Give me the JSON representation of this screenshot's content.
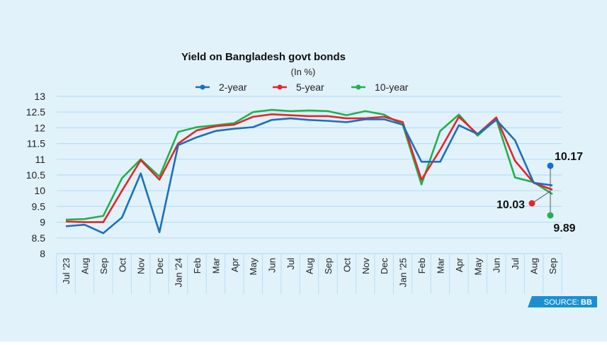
{
  "chart_data": {
    "type": "line",
    "title": "Yield on Bangladesh govt bonds",
    "subtitle": "(In %)",
    "xlabel": "",
    "ylabel": "",
    "ylim": [
      8,
      13
    ],
    "yticks": [
      "8",
      "8.5",
      "9",
      "9.5",
      "10",
      "10.5",
      "11",
      "11.5",
      "12",
      "12.5",
      "13"
    ],
    "ytick_values": [
      8,
      8.5,
      9,
      9.5,
      10,
      10.5,
      11,
      11.5,
      12,
      12.5,
      13
    ],
    "grid": true,
    "legend_position": "top-center",
    "categories": [
      "Jul '23",
      "Aug",
      "Sep",
      "Oct",
      "Nov",
      "Dec",
      "Jan '24",
      "Feb",
      "Mar",
      "Apr",
      "May",
      "Jun",
      "Jul",
      "Aug",
      "Sep",
      "Oct",
      "Nov",
      "Dec",
      "Jan '25",
      "Feb",
      "Mar",
      "Apr",
      "May",
      "Jun",
      "Jul",
      "Aug",
      "Sep"
    ],
    "series": [
      {
        "name": "2-year",
        "color": "#1b6fbf",
        "values": [
          8.87,
          8.92,
          8.65,
          9.15,
          10.55,
          8.68,
          11.45,
          11.7,
          11.9,
          11.97,
          12.02,
          12.25,
          12.3,
          12.25,
          12.22,
          12.18,
          12.27,
          12.27,
          12.1,
          10.92,
          10.92,
          12.08,
          11.8,
          12.25,
          11.6,
          10.25,
          10.17
        ]
      },
      {
        "name": "5-year",
        "color": "#e8232a",
        "values": [
          9.02,
          9.0,
          9.0,
          10.0,
          10.97,
          10.35,
          11.5,
          11.92,
          12.05,
          12.1,
          12.35,
          12.43,
          12.4,
          12.37,
          12.37,
          12.3,
          12.3,
          12.35,
          12.18,
          10.35,
          11.3,
          12.35,
          11.8,
          12.33,
          10.95,
          10.25,
          10.03
        ]
      },
      {
        "name": "10-year",
        "color": "#20b24b",
        "values": [
          9.08,
          9.1,
          9.2,
          10.4,
          11.0,
          10.45,
          11.87,
          12.02,
          12.08,
          12.15,
          12.5,
          12.57,
          12.53,
          12.55,
          12.53,
          12.4,
          12.53,
          12.42,
          12.1,
          10.2,
          11.9,
          12.42,
          11.75,
          12.27,
          10.42,
          10.27,
          9.89
        ]
      }
    ],
    "annotations": [
      {
        "series": "2-year",
        "label": "10.17",
        "color": "#1b6fbf"
      },
      {
        "series": "5-year",
        "label": "10.03",
        "color": "#e8232a"
      },
      {
        "series": "10-year",
        "label": "9.89",
        "color": "#20b24b"
      }
    ]
  },
  "source": {
    "prefix": "SOURCE:",
    "name": "BB"
  },
  "colors": {
    "background": "#e1f2fb",
    "grid": "#b7dff3",
    "badge": "#1a90d2"
  }
}
